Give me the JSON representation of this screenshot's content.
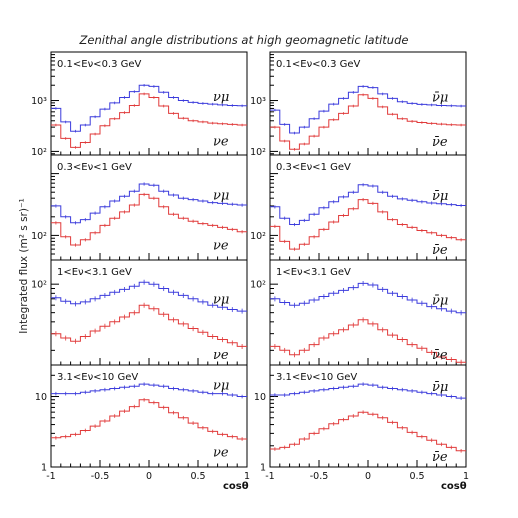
{
  "chart_data": {
    "type": "line",
    "title": "Zenithal angle distributions at high geomagnetic latitude",
    "ylabel": "Integrated flux (m² s sr)⁻¹",
    "xlabel": "cosθ",
    "xlim": [
      -1,
      1
    ],
    "x_ticks": [
      "-1",
      "-0.5",
      "0",
      "0.5",
      "1"
    ],
    "y_scale": "log",
    "x": [
      -0.95,
      -0.85,
      -0.75,
      -0.65,
      -0.55,
      -0.45,
      -0.35,
      -0.25,
      -0.15,
      -0.05,
      0.05,
      0.15,
      0.25,
      0.35,
      0.45,
      0.55,
      0.65,
      0.75,
      0.85,
      0.95
    ],
    "colors": {
      "numu": "#3b3bdc",
      "nue": "#e03a3a"
    },
    "panels": [
      {
        "range_label": "0.1<Eν<0.3 GeV",
        "ylim": [
          85,
          9000
        ],
        "y_tick_labels": [
          {
            "v": 1000,
            "label": "10³"
          },
          {
            "v": 100,
            "label": "10²"
          }
        ],
        "series": [
          {
            "name": "νμ",
            "values": [
              700,
              380,
              250,
              330,
              480,
              680,
              900,
              1150,
              1500,
              2000,
              1900,
              1450,
              1150,
              1000,
              920,
              880,
              850,
              820,
              800,
              790
            ]
          },
          {
            "name": "νe",
            "values": [
              330,
              180,
              120,
              150,
              220,
              320,
              440,
              580,
              800,
              1350,
              1150,
              780,
              560,
              450,
              400,
              380,
              360,
              350,
              340,
              330
            ]
          }
        ]
      },
      {
        "range_label": "0.1<Eν<0.3 GeV",
        "ylim": [
          85,
          9000
        ],
        "y_tick_labels": [
          {
            "v": 1000,
            "label": "10³"
          },
          {
            "v": 100,
            "label": "10²"
          }
        ],
        "series": [
          {
            "name": "ν̄μ",
            "values": [
              650,
              340,
              230,
              300,
              440,
              620,
              850,
              1100,
              1450,
              1900,
              1800,
              1350,
              1100,
              950,
              880,
              840,
              820,
              800,
              790,
              780
            ]
          },
          {
            "name": "ν̄e",
            "values": [
              300,
              160,
              110,
              140,
              200,
              300,
              420,
              560,
              780,
              1300,
              1100,
              750,
              540,
              440,
              390,
              370,
              355,
              345,
              335,
              330
            ]
          }
        ]
      },
      {
        "range_label": "0.3<Eν<1 GeV",
        "ylim": [
          40,
          2000
        ],
        "y_tick_labels": [
          {
            "v": 100,
            "label": "10²"
          }
        ],
        "series": [
          {
            "name": "νμ",
            "values": [
              300,
              200,
              160,
              180,
              230,
              290,
              360,
              430,
              520,
              680,
              650,
              520,
              450,
              400,
              380,
              360,
              340,
              330,
              320,
              310
            ]
          },
          {
            "name": "νe",
            "values": [
              160,
              95,
              70,
              85,
              110,
              145,
              190,
              240,
              310,
              460,
              400,
              290,
              220,
              190,
              170,
              155,
              145,
              135,
              125,
              115
            ]
          }
        ]
      },
      {
        "range_label": "0.3<Eν<1 GeV",
        "ylim": [
          40,
          2000
        ],
        "y_tick_labels": [
          {
            "v": 100,
            "label": "10²"
          }
        ],
        "series": [
          {
            "name": "ν̄μ",
            "values": [
              290,
              190,
              150,
              175,
              220,
              280,
              350,
              420,
              500,
              660,
              630,
              500,
              430,
              390,
              370,
              350,
              335,
              325,
              315,
              305
            ]
          },
          {
            "name": "ν̄e",
            "values": [
              140,
              80,
              60,
              72,
              95,
              125,
              165,
              210,
              270,
              380,
              330,
              240,
              180,
              150,
              135,
              120,
              110,
              100,
              92,
              85
            ]
          }
        ]
      },
      {
        "range_label": "1<Eν<3.1 GeV",
        "ylim": [
          14,
          180
        ],
        "y_tick_labels": [
          {
            "v": 100,
            "label": "10²"
          }
        ],
        "series": [
          {
            "name": "νμ",
            "values": [
              72,
              66,
              62,
              65,
              70,
              76,
              82,
              88,
              95,
              105,
              100,
              90,
              82,
              76,
              70,
              65,
              60,
              57,
              54,
              52
            ]
          },
          {
            "name": "νe",
            "values": [
              30,
              27,
              25,
              28,
              32,
              36,
              40,
              45,
              50,
              60,
              55,
              48,
              42,
              38,
              34,
              31,
              28,
              26,
              24,
              22
            ]
          }
        ]
      },
      {
        "range_label": "1<Eν<3.1 GeV",
        "ylim": [
          14,
          180
        ],
        "y_tick_labels": [
          {
            "v": 100,
            "label": "10²"
          }
        ],
        "series": [
          {
            "name": "ν̄μ",
            "values": [
              70,
              64,
              60,
              63,
              68,
              74,
              80,
              86,
              92,
              102,
              98,
              88,
              80,
              74,
              68,
              63,
              58,
              55,
              52,
              50
            ]
          },
          {
            "name": "ν̄e",
            "values": [
              22,
              20,
              18,
              20,
              23,
              27,
              30,
              33,
              37,
              42,
              38,
              33,
              29,
              26,
              23,
              21,
              19,
              17,
              16,
              15
            ]
          }
        ]
      },
      {
        "range_label": "3.1<Eν<10 GeV",
        "ylim": [
          1,
          28
        ],
        "y_tick_labels": [
          {
            "v": 10,
            "label": "10"
          },
          {
            "v": 1,
            "label": "1"
          }
        ],
        "series": [
          {
            "name": "νμ",
            "values": [
              11,
              11,
              11,
              11.5,
              12,
              12.5,
              13,
              13.5,
              14,
              15,
              14.5,
              14,
              13,
              12.5,
              12,
              11.5,
              11,
              11,
              10.5,
              10
            ]
          },
          {
            "name": "νe",
            "values": [
              2.6,
              2.7,
              2.9,
              3.3,
              3.8,
              4.5,
              5.3,
              6.2,
              7.2,
              9,
              8.2,
              7,
              5.9,
              5,
              4.2,
              3.6,
              3.2,
              2.9,
              2.7,
              2.5
            ]
          }
        ]
      },
      {
        "range_label": "3.1<Eν<10 GeV",
        "ylim": [
          1,
          28
        ],
        "y_tick_labels": [
          {
            "v": 10,
            "label": "10"
          },
          {
            "v": 1,
            "label": "1"
          }
        ],
        "series": [
          {
            "name": "ν̄μ",
            "values": [
              10.5,
              10.5,
              11,
              11.5,
              12,
              12.5,
              13,
              13.5,
              14,
              15,
              14.5,
              13.5,
              13,
              12.5,
              12,
              11.5,
              11,
              10.5,
              10,
              9.5
            ]
          },
          {
            "name": "ν̄e",
            "values": [
              1.8,
              1.9,
              2.1,
              2.5,
              3,
              3.5,
              4.1,
              4.7,
              5.3,
              6,
              5.6,
              5,
              4.3,
              3.6,
              3.1,
              2.7,
              2.4,
              2.1,
              1.9,
              1.7
            ]
          }
        ]
      }
    ]
  }
}
